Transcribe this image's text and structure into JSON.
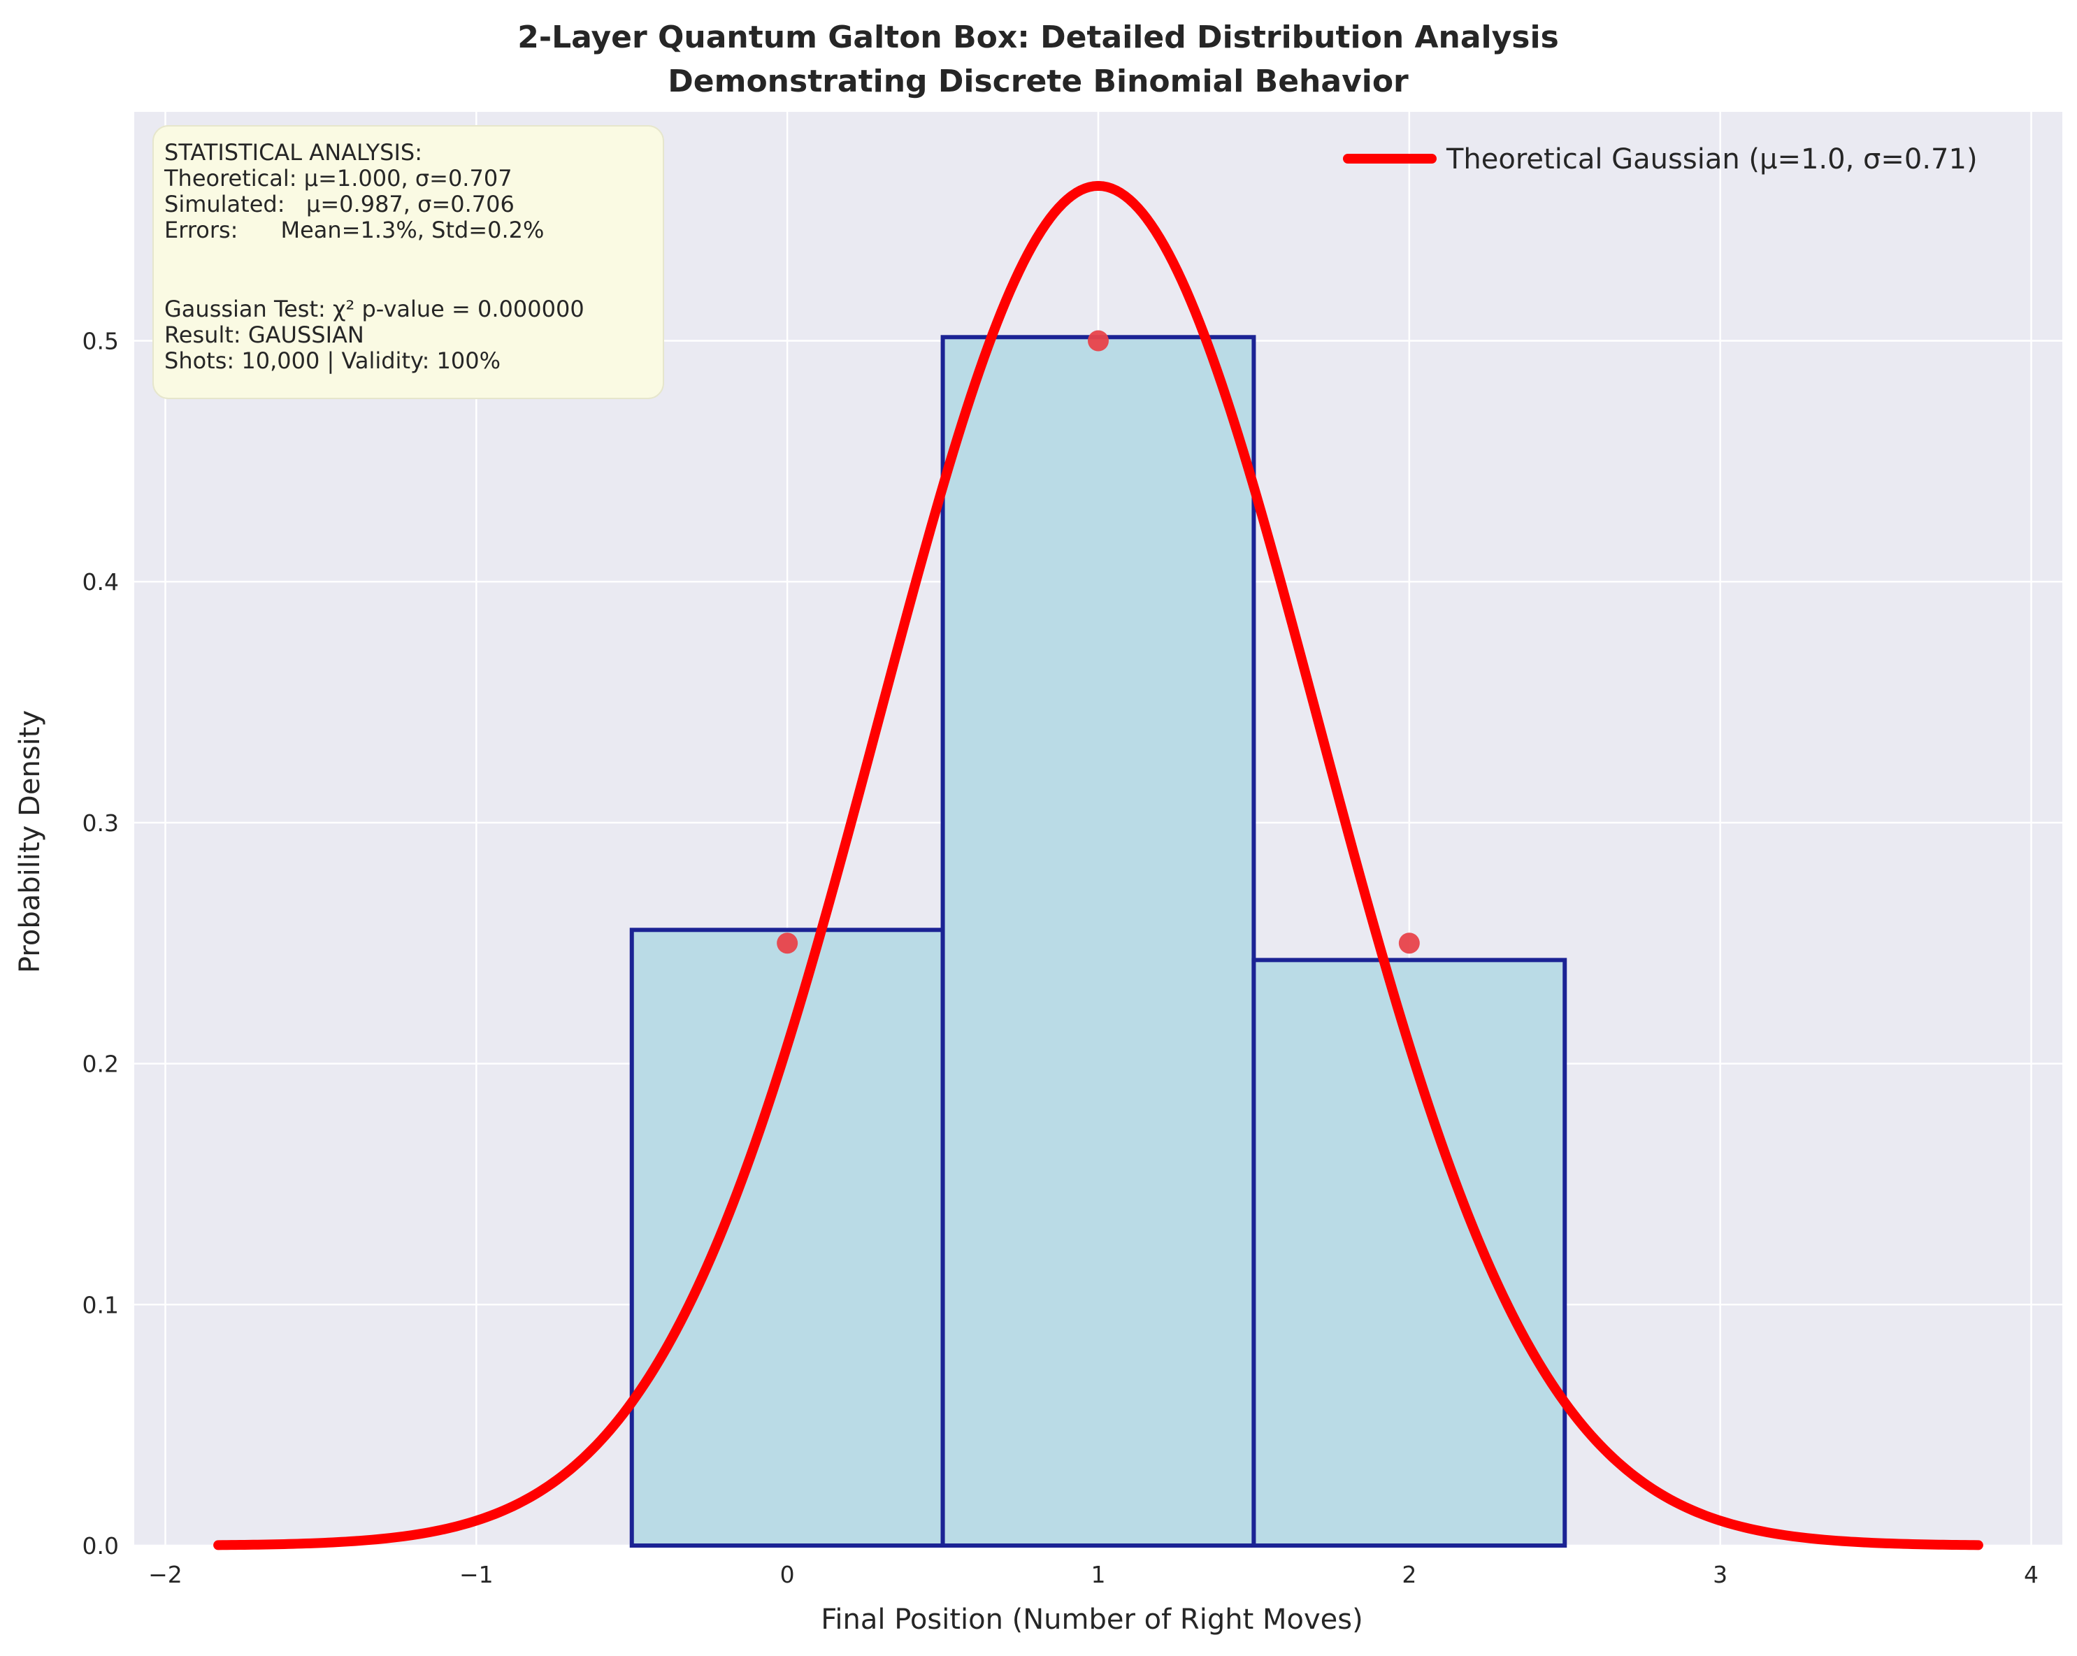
{
  "chart_data": {
    "type": "bar",
    "title_lines": [
      "2-Layer Quantum Galton Box: Detailed Distribution Analysis",
      "Demonstrating Discrete Binomial Behavior"
    ],
    "xlabel": "Final Position (Number of Right Moves)",
    "ylabel": "Probability Density",
    "xlim": [
      -2.1,
      4.1
    ],
    "ylim": [
      0,
      0.595
    ],
    "x_ticks": [
      -2,
      -1,
      0,
      1,
      2,
      3,
      4
    ],
    "x_tick_labels": [
      "−2",
      "−1",
      "0",
      "1",
      "2",
      "3",
      "4"
    ],
    "y_ticks": [
      0.0,
      0.1,
      0.2,
      0.3,
      0.4,
      0.5
    ],
    "y_tick_labels": [
      "0.0",
      "0.1",
      "0.2",
      "0.3",
      "0.4",
      "0.5"
    ],
    "grid": true,
    "bars": [
      {
        "x": 0,
        "left": -0.5,
        "right": 0.5,
        "value": 0.2555
      },
      {
        "x": 1,
        "left": 0.5,
        "right": 1.5,
        "value": 0.5015
      },
      {
        "x": 2,
        "left": 1.5,
        "right": 2.5,
        "value": 0.243
      }
    ],
    "theoretical_points": {
      "x": [
        0,
        1,
        2
      ],
      "y": [
        0.25,
        0.5,
        0.25
      ]
    },
    "gaussian_curve": {
      "mu": 1.0,
      "sigma": 0.707,
      "x_range": [
        -1.83,
        3.83
      ]
    },
    "legend": {
      "position": "top-right",
      "entries": [
        "Theoretical Gaussian (μ=1.0, σ=0.71)"
      ]
    },
    "stats_box": {
      "position": "top-left",
      "lines": [
        "STATISTICAL ANALYSIS:",
        "Theoretical: μ=1.000, σ=0.707",
        "Simulated:   μ=0.987, σ=0.706",
        "Errors:      Mean=1.3%, Std=0.2%",
        "",
        "Gaussian Test: χ² p-value = 0.000000",
        "Result: GAUSSIAN",
        "Shots: 10,000 | Validity: 100%"
      ]
    },
    "colors": {
      "plot_background": "#EAEAF2",
      "grid": "#ffffff",
      "bar_fill": "#BADBE6",
      "bar_edge": "#1B2394",
      "curve": "#FF0000",
      "points": "#E8434A",
      "stats_box_fill": "#FAFAE3"
    }
  }
}
